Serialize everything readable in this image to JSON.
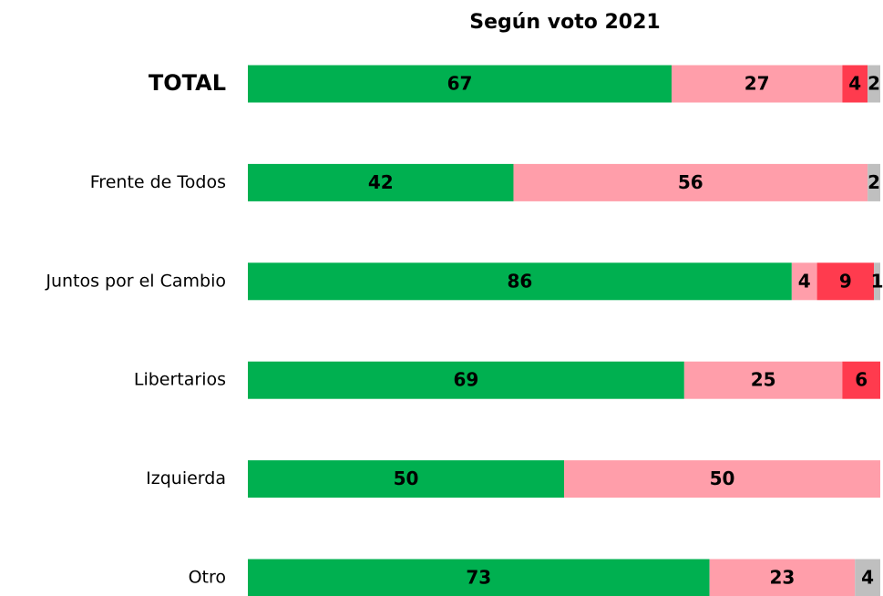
{
  "chart_data": {
    "type": "stacked-bar",
    "orientation": "horizontal",
    "title": "Según voto 2021",
    "categories": [
      "TOTAL",
      "Frente de Todos",
      "Juntos por el Cambio",
      "Libertarios",
      "Izquierda",
      "Otro"
    ],
    "bold_categories": [
      "TOTAL"
    ],
    "series": [
      {
        "color": "#00b050",
        "values": [
          67,
          42,
          86,
          69,
          50,
          73
        ]
      },
      {
        "color": "#ff9eaa",
        "values": [
          27,
          56,
          4,
          25,
          50,
          23
        ]
      },
      {
        "color": "#ff3b4e",
        "values": [
          4,
          null,
          9,
          6,
          null,
          null
        ]
      },
      {
        "color": "#bfbfbf",
        "values": [
          2,
          2,
          1,
          null,
          null,
          4
        ]
      }
    ],
    "xlim": [
      0,
      100
    ]
  }
}
